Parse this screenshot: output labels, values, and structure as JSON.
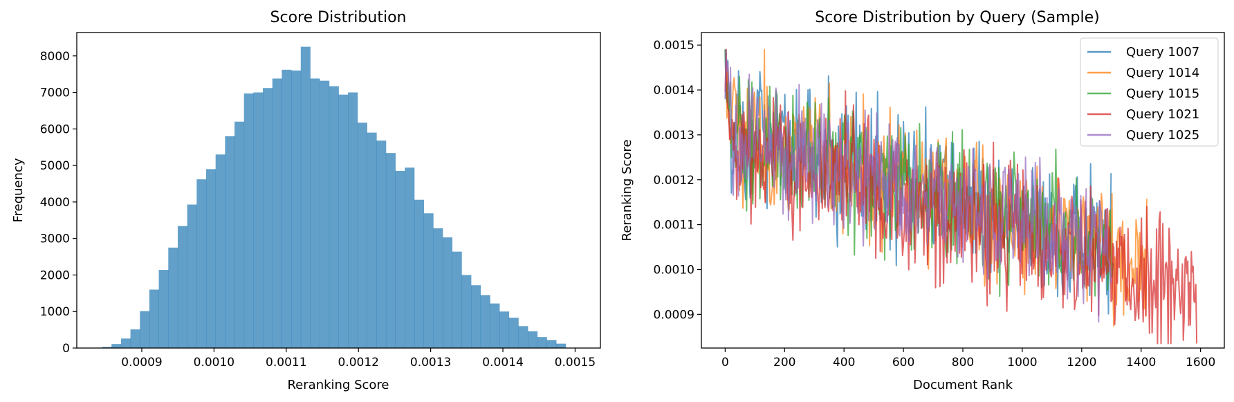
{
  "chart_data": [
    {
      "type": "bar",
      "title": "Score Distribution",
      "xlabel": "Reranking Score",
      "ylabel": "Frequency",
      "xlim": [
        0.00081,
        0.001535
      ],
      "ylim": [
        0,
        8640
      ],
      "xticks": [
        "0.0009",
        "0.0010",
        "0.0011",
        "0.0012",
        "0.0013",
        "0.0014",
        "0.0015"
      ],
      "xtick_values": [
        0.0009,
        0.001,
        0.0011,
        0.0012,
        0.0013,
        0.0014,
        0.0015
      ],
      "yticks": [
        "0",
        "1000",
        "2000",
        "3000",
        "4000",
        "5000",
        "6000",
        "7000",
        "8000"
      ],
      "ytick_values": [
        0,
        1000,
        2000,
        3000,
        4000,
        5000,
        6000,
        7000,
        8000
      ],
      "bin_start": 0.000845,
      "bin_width": 1.31e-05,
      "values": [
        30,
        110,
        260,
        510,
        1010,
        1600,
        2140,
        2750,
        3340,
        3930,
        4620,
        4900,
        5300,
        5800,
        6200,
        6970,
        7000,
        7120,
        7380,
        7620,
        7600,
        8250,
        7380,
        7320,
        7170,
        6940,
        7000,
        6170,
        5900,
        5680,
        5340,
        4850,
        4940,
        4060,
        3690,
        3280,
        3030,
        2640,
        2000,
        1720,
        1450,
        1220,
        1000,
        830,
        600,
        460,
        300,
        220,
        120
      ],
      "color": "#1f77b4",
      "grid": false
    },
    {
      "type": "line",
      "title": "Score Distribution by Query (Sample)",
      "xlabel": "Document Rank",
      "ylabel": "Reranking Score",
      "xlim": [
        -80,
        1680
      ],
      "ylim": [
        0.000825,
        0.001528
      ],
      "xticks": [
        "0",
        "200",
        "400",
        "600",
        "800",
        "1000",
        "1200",
        "1400",
        "1600"
      ],
      "xtick_values": [
        0,
        200,
        400,
        600,
        800,
        1000,
        1200,
        1400,
        1600
      ],
      "yticks": [
        "0.0009",
        "0.0010",
        "0.0011",
        "0.0012",
        "0.0013",
        "0.0014",
        "0.0015"
      ],
      "ytick_values": [
        0.0009,
        0.001,
        0.0011,
        0.0012,
        0.0013,
        0.0014,
        0.0015
      ],
      "legend_position": "top-right",
      "grid": false,
      "series": [
        {
          "name": "Query 1007",
          "color": "#1f77b4",
          "n_points": 1300,
          "trend_start": 0.00131,
          "trend_end": 0.00105,
          "spread": 0.000125
        },
        {
          "name": "Query 1014",
          "color": "#ff7f0e",
          "n_points": 1420,
          "trend_start": 0.00131,
          "trend_end": 0.00102,
          "spread": 0.000125
        },
        {
          "name": "Query 1015",
          "color": "#2ca02c",
          "n_points": 1310,
          "trend_start": 0.00131,
          "trend_end": 0.00104,
          "spread": 0.000125
        },
        {
          "name": "Query 1021",
          "color": "#d62728",
          "n_points": 1590,
          "trend_start": 0.00129,
          "trend_end": 0.00094,
          "spread": 0.00013
        },
        {
          "name": "Query 1025",
          "color": "#9467bd",
          "n_points": 1300,
          "trend_start": 0.00131,
          "trend_end": 0.00105,
          "spread": 0.000125
        }
      ]
    }
  ]
}
